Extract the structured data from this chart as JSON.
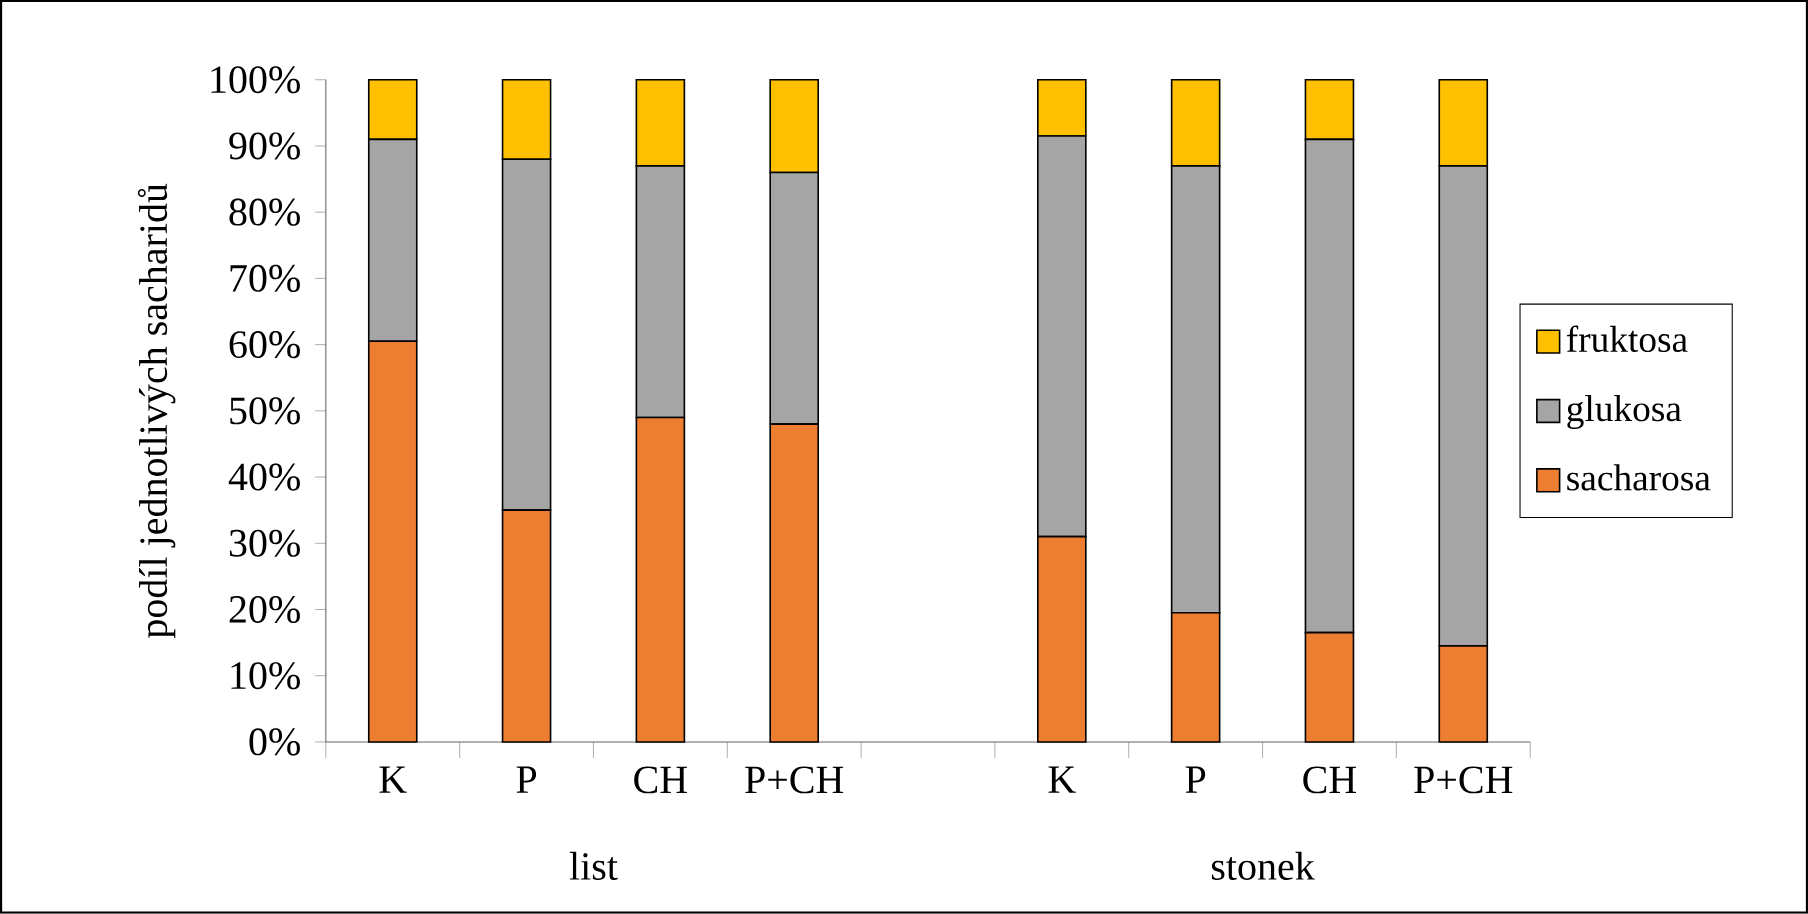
{
  "chart_data": {
    "type": "bar",
    "stacked": true,
    "ylabel": "podíl jednotlivých sacharidů",
    "categories": [
      "K",
      "P",
      "CH",
      "P+CH",
      null,
      "K",
      "P",
      "CH",
      "P+CH"
    ],
    "series": [
      {
        "name": "sacharosa",
        "color": "#ed7d31",
        "values": [
          60.5,
          35,
          49,
          48,
          null,
          31,
          19.5,
          16.5,
          14.5
        ]
      },
      {
        "name": "glukosa",
        "color": "#a5a5a5",
        "values": [
          30.5,
          53,
          38,
          38,
          null,
          60.5,
          67.5,
          74.5,
          72.5
        ]
      },
      {
        "name": "fruktosa",
        "color": "#ffc000",
        "values": [
          9,
          12,
          13,
          14,
          null,
          8.5,
          13,
          9,
          13
        ]
      }
    ],
    "ylim": [
      0,
      100
    ],
    "yticks": [
      {
        "value": 0,
        "label": "0%"
      },
      {
        "value": 10,
        "label": "10%"
      },
      {
        "value": 20,
        "label": "20%"
      },
      {
        "value": 30,
        "label": "30%"
      },
      {
        "value": 40,
        "label": "40%"
      },
      {
        "value": 50,
        "label": "50%"
      },
      {
        "value": 60,
        "label": "60%"
      },
      {
        "value": 70,
        "label": "70%"
      },
      {
        "value": 80,
        "label": "80%"
      },
      {
        "value": 90,
        "label": "90%"
      },
      {
        "value": 100,
        "label": "100%"
      }
    ],
    "legend": "right",
    "annotations": [
      "list",
      "stonek"
    ]
  }
}
